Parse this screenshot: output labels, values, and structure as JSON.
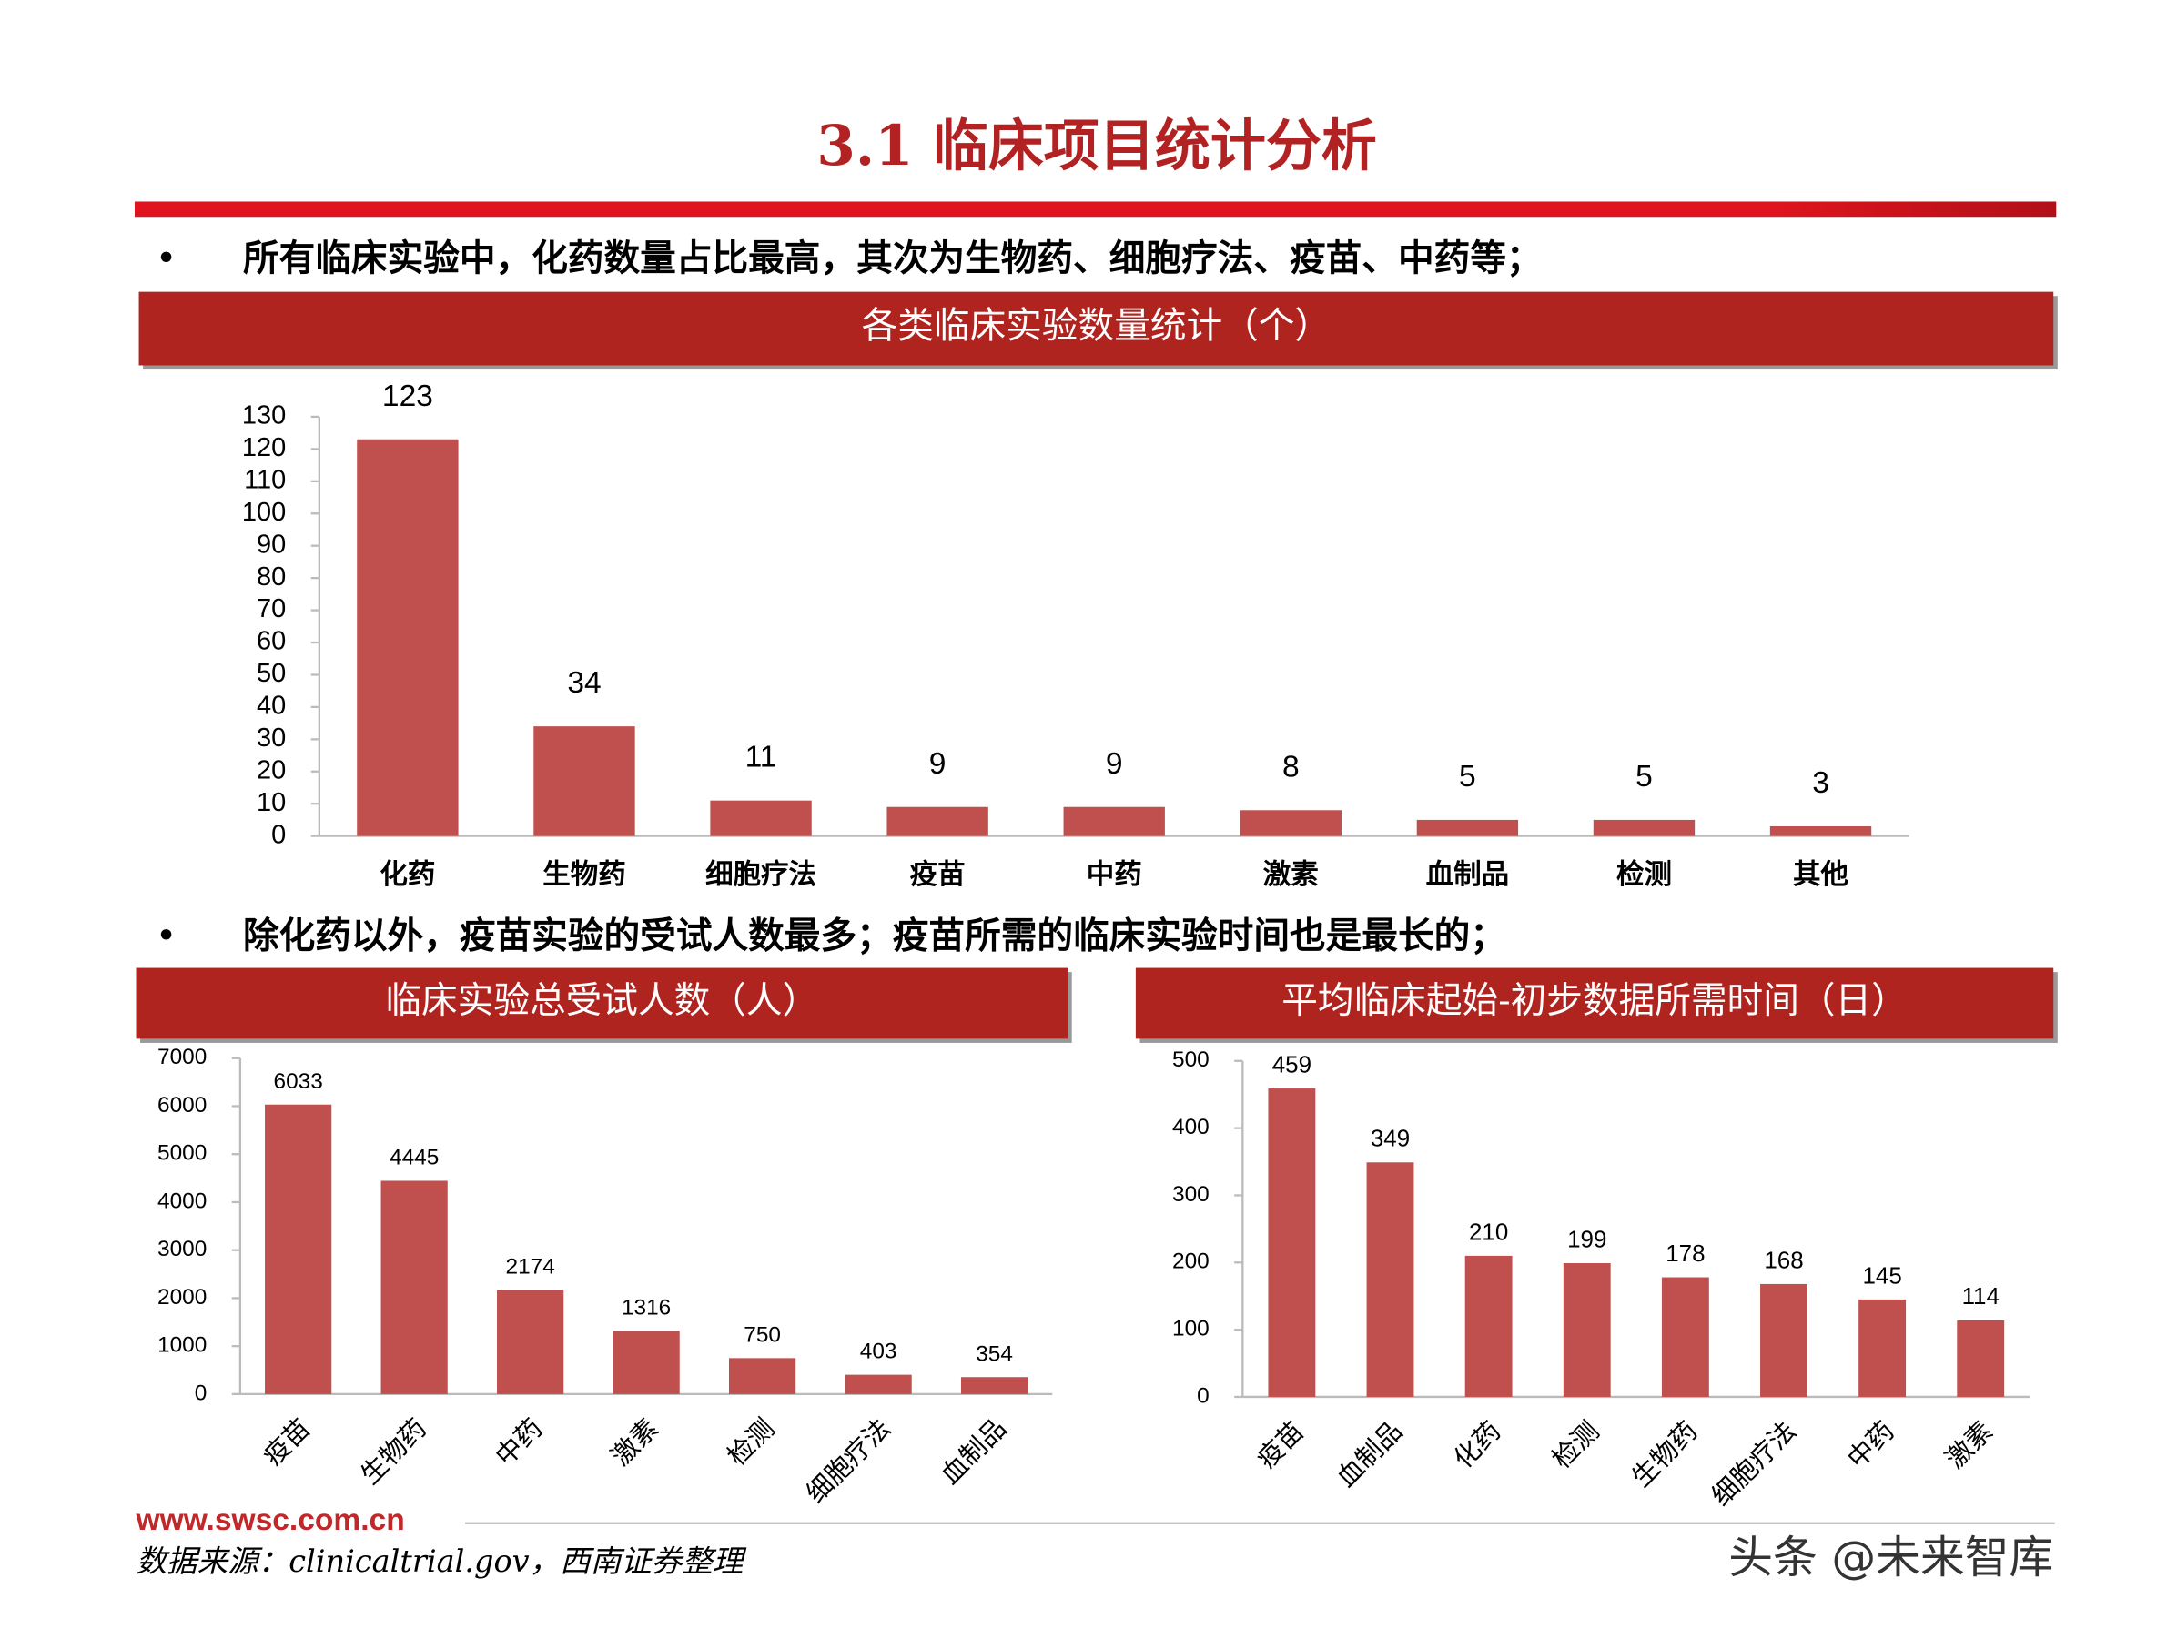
{
  "page": {
    "title": "3.1 临床项目统计分析",
    "bullets": [
      "所有临床实验中，化药数量占比最高，其次为生物药、细胞疗法、疫苗、中药等；",
      "除化药以外，疫苗实验的受试人数最多；疫苗所需的临床实验时间也是最长的；"
    ],
    "website": "www.swsc.com.cn",
    "source": "数据来源：clinicaltrial.gov，西南证券整理",
    "watermark": "头条 @未来智库"
  },
  "chart_data": [
    {
      "type": "bar",
      "title": "各类临床实验数量统计（个）",
      "categories": [
        "化药",
        "生物药",
        "细胞疗法",
        "疫苗",
        "中药",
        "激素",
        "血制品",
        "检测",
        "其他"
      ],
      "values": [
        123,
        34,
        11,
        9,
        9,
        8,
        5,
        5,
        3
      ],
      "color": "#c0504d",
      "ylim": [
        0,
        130
      ],
      "yticks": [
        0,
        10,
        20,
        30,
        40,
        50,
        60,
        70,
        80,
        90,
        100,
        110,
        120,
        130
      ]
    },
    {
      "type": "bar",
      "title": "临床实验总受试人数（人）",
      "categories": [
        "疫苗",
        "生物药",
        "中药",
        "激素",
        "检测",
        "细胞疗法",
        "血制品"
      ],
      "values": [
        6033,
        4445,
        2174,
        1316,
        750,
        403,
        354
      ],
      "color": "#c0504d",
      "ylim": [
        0,
        7000
      ],
      "yticks": [
        0,
        1000,
        2000,
        3000,
        4000,
        5000,
        6000,
        7000
      ]
    },
    {
      "type": "bar",
      "title": "平均临床起始-初步数据所需时间（日）",
      "categories": [
        "疫苗",
        "血制品",
        "化药",
        "检测",
        "生物药",
        "细胞疗法",
        "中药",
        "激素"
      ],
      "values": [
        459,
        349,
        210,
        199,
        178,
        168,
        145,
        114
      ],
      "color": "#c0504d",
      "ylim": [
        0,
        500
      ],
      "yticks": [
        0,
        100,
        200,
        300,
        400,
        500
      ]
    }
  ]
}
